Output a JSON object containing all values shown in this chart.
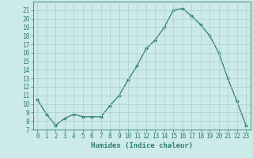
{
  "x": [
    0,
    1,
    2,
    3,
    4,
    5,
    6,
    7,
    8,
    9,
    10,
    11,
    12,
    13,
    14,
    15,
    16,
    17,
    18,
    19,
    20,
    21,
    22,
    23
  ],
  "y": [
    10.5,
    8.8,
    7.5,
    8.3,
    8.8,
    8.5,
    8.5,
    8.5,
    9.8,
    11.0,
    12.8,
    14.5,
    16.5,
    17.5,
    19.0,
    21.0,
    21.2,
    20.3,
    19.3,
    18.0,
    16.0,
    13.0,
    10.3,
    7.5
  ],
  "line_color": "#2e7d6e",
  "marker": "D",
  "marker_size": 2.0,
  "bg_color": "#cceae8",
  "grid_color": "#aacfcc",
  "xlabel": "Humidex (Indice chaleur)",
  "xlim": [
    -0.5,
    23.5
  ],
  "ylim": [
    7,
    22
  ],
  "yticks": [
    7,
    8,
    9,
    10,
    11,
    12,
    13,
    14,
    15,
    16,
    17,
    18,
    19,
    20,
    21
  ],
  "xticks": [
    0,
    1,
    2,
    3,
    4,
    5,
    6,
    7,
    8,
    9,
    10,
    11,
    12,
    13,
    14,
    15,
    16,
    17,
    18,
    19,
    20,
    21,
    22,
    23
  ],
  "tick_fontsize": 5.5,
  "xlabel_fontsize": 6.5
}
